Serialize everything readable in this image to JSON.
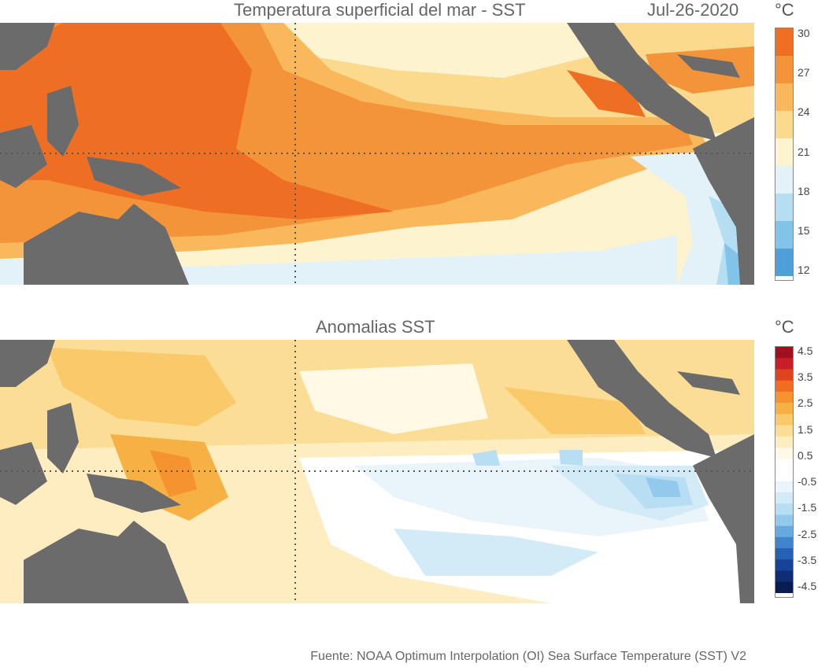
{
  "top_map": {
    "title": "Temperatura superficial del mar - SST",
    "date": "Jul-26-2020",
    "unit": "°C",
    "colorbar_ticks": [
      "30",
      "27",
      "24",
      "21",
      "18",
      "15",
      "12"
    ],
    "colorbar_colors": [
      "#ee6f23",
      "#f3933a",
      "#f8b85b",
      "#fbd98d",
      "#fdf3cf",
      "#e2f2f8",
      "#b6def2",
      "#82c3ea",
      "#4f9fda"
    ]
  },
  "bottom_map": {
    "title": "Anomalias SST",
    "unit": "°C",
    "colorbar_ticks": [
      "4.5",
      "3.5",
      "2.5",
      "1.5",
      "0.5",
      "-0.5",
      "-1.5",
      "-2.5",
      "-3.5",
      "-4.5"
    ],
    "colorbar_colors": [
      "#a01020",
      "#c81e28",
      "#e0431f",
      "#ef6c20",
      "#f4932f",
      "#f7b043",
      "#f9c96a",
      "#fbdd95",
      "#fdedc0",
      "#fff9e6",
      "#ffffff",
      "#ffffff",
      "#eaf5fb",
      "#d3ebf7",
      "#b7def3",
      "#92c9ec",
      "#66a9df",
      "#3f84cc",
      "#2561b4",
      "#174297",
      "#0f2c74",
      "#0a1d52"
    ]
  },
  "colors": {
    "land": "#6b6b6b",
    "grid_line": "#555555"
  },
  "source": "Fuente: NOAA Optimum Interpolation (OI) Sea Surface Temperature (SST) V2"
}
